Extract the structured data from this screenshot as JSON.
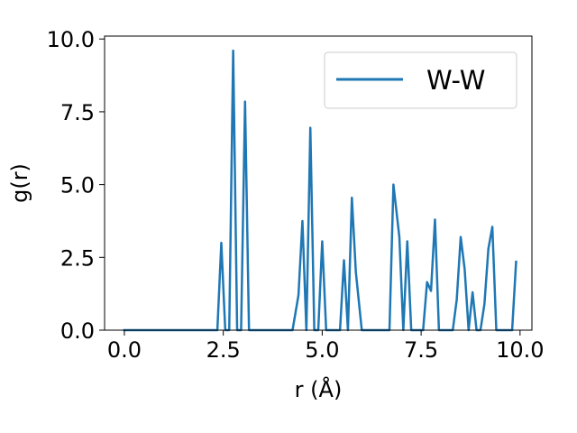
{
  "chart_data": {
    "type": "line",
    "title": "",
    "xlabel": "r (Å)",
    "ylabel": "g(r)",
    "xlim": [
      -0.5,
      10.3
    ],
    "ylim": [
      0,
      10.1
    ],
    "xticks": [
      0.0,
      2.5,
      5.0,
      7.5,
      10.0
    ],
    "xtick_labels": [
      "0.0",
      "2.5",
      "5.0",
      "7.5",
      "10.0"
    ],
    "yticks": [
      0.0,
      2.5,
      5.0,
      7.5,
      10.0
    ],
    "ytick_labels": [
      "0.0",
      "2.5",
      "5.0",
      "7.5",
      "10.0"
    ],
    "grid": false,
    "legend": "top-right",
    "series": [
      {
        "name": "W-W",
        "color": "#1f77b4",
        "x": [
          0.0,
          2.35,
          2.45,
          2.55,
          2.65,
          2.75,
          2.85,
          2.95,
          3.05,
          3.15,
          3.25,
          4.25,
          4.4,
          4.5,
          4.6,
          4.7,
          4.8,
          4.9,
          5.0,
          5.1,
          5.2,
          5.45,
          5.55,
          5.65,
          5.75,
          5.85,
          6.0,
          6.15,
          6.7,
          6.8,
          6.95,
          7.05,
          7.15,
          7.25,
          7.55,
          7.65,
          7.75,
          7.85,
          7.95,
          8.3,
          8.4,
          8.5,
          8.6,
          8.7,
          8.8,
          8.9,
          9.0,
          9.1,
          9.2,
          9.3,
          9.4,
          9.8,
          9.9
        ],
        "y": [
          0.0,
          0.0,
          3.0,
          0.0,
          0.0,
          9.6,
          0.0,
          0.0,
          7.85,
          0.0,
          0.0,
          0.0,
          1.2,
          3.75,
          0.0,
          6.95,
          0.0,
          0.0,
          3.05,
          0.0,
          0.0,
          0.0,
          2.4,
          0.0,
          4.55,
          2.0,
          0.0,
          0.0,
          0.0,
          5.0,
          3.2,
          0.0,
          3.05,
          0.0,
          0.0,
          1.65,
          1.35,
          3.8,
          0.0,
          0.0,
          1.05,
          3.2,
          2.1,
          0.0,
          1.3,
          0.0,
          0.0,
          0.9,
          2.8,
          3.55,
          0.0,
          0.0,
          2.35
        ]
      }
    ]
  }
}
